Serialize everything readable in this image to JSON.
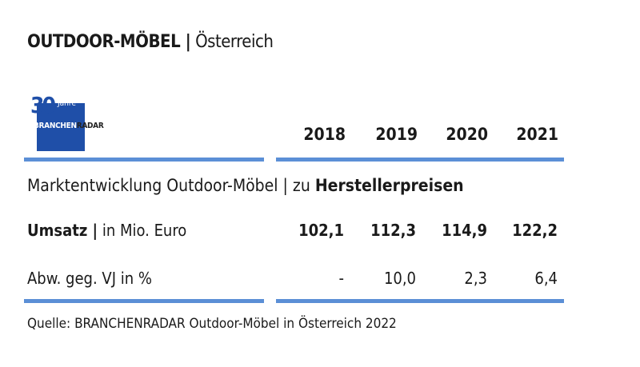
{
  "title": {
    "bold": "OUTDOOR-MÖBEL |",
    "rest": " Österreich"
  },
  "logo": {
    "number": "30",
    "jahre": "Jahre",
    "brand_a": "BRANCHEN",
    "brand_b": "RADAR",
    "color": "#1f4fa8"
  },
  "years": [
    "2018",
    "2019",
    "2020",
    "2021"
  ],
  "subtitle": {
    "normal": "Marktentwicklung Outdoor-Möbel | zu ",
    "bold": "Herstellerpreisen"
  },
  "rows": [
    {
      "label_bold": "Umsatz |",
      "label": " in Mio. Euro",
      "values": [
        "102,1",
        "112,3",
        "114,9",
        "122,2"
      ],
      "bold": true
    },
    {
      "label_bold": "",
      "label": "Abw. geg. VJ in %",
      "values": [
        "-",
        "10,0",
        "2,3",
        "6,4"
      ],
      "bold": false
    }
  ],
  "source": "Quelle: BRANCHENRADAR Outdoor-Möbel in Österreich 2022",
  "accent": "#5b8fd6"
}
